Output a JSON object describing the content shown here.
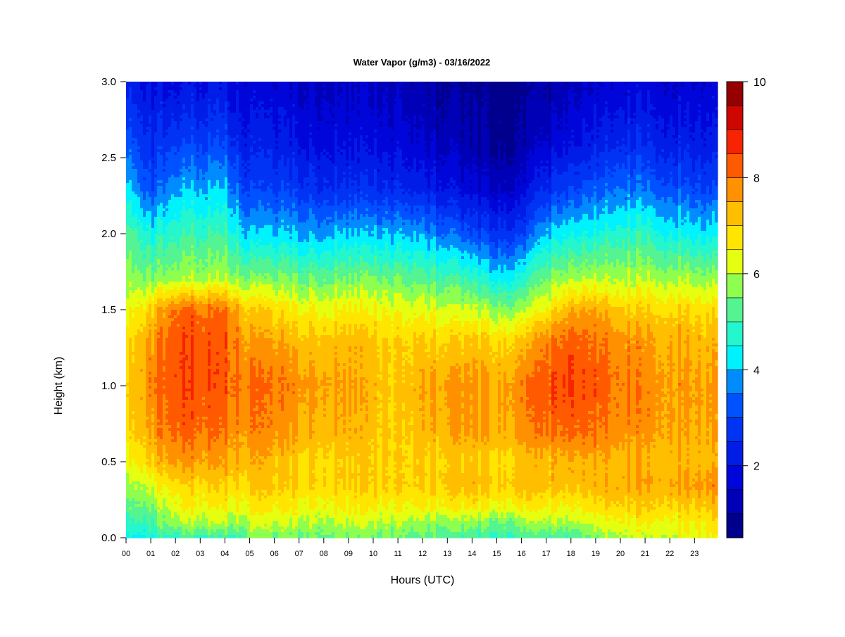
{
  "chart_data": {
    "type": "heatmap",
    "title": "Water Vapor (g/m3) - 03/16/2022",
    "xlabel": "Hours (UTC)",
    "ylabel": "Height (km)",
    "xlim": [
      0,
      23.9
    ],
    "ylim": [
      0.0,
      3.0
    ],
    "x_ticks": [
      "00",
      "01",
      "02",
      "03",
      "04",
      "05",
      "06",
      "07",
      "08",
      "09",
      "10",
      "11",
      "12",
      "13",
      "14",
      "15",
      "16",
      "17",
      "18",
      "19",
      "20",
      "21",
      "22",
      "23"
    ],
    "y_ticks": [
      "0.0",
      "0.5",
      "1.0",
      "1.5",
      "2.0",
      "2.5",
      "3.0"
    ],
    "x_hours": [
      0,
      1,
      2,
      4,
      4.5,
      5,
      7,
      9,
      11,
      12,
      13,
      14,
      15,
      16,
      17,
      18,
      19,
      20,
      21,
      22,
      23.9
    ],
    "heights_km": [
      0.0,
      0.1,
      0.2,
      0.35,
      0.5,
      0.7,
      1.0,
      1.3,
      1.5,
      1.7,
      2.0,
      2.3,
      2.6,
      3.0
    ],
    "values": [
      [
        4.5,
        5.0,
        5.5,
        6.0,
        6.5,
        7.0,
        7.2,
        7.0,
        6.5,
        6.0,
        5.5,
        4.5,
        3.5,
        2.5
      ],
      [
        4.5,
        5.0,
        5.5,
        6.2,
        7.0,
        7.5,
        7.8,
        7.6,
        7.0,
        5.5,
        4.5,
        3.0,
        2.5,
        1.8
      ],
      [
        5.0,
        6.0,
        6.5,
        7.0,
        7.8,
        8.3,
        8.6,
        8.5,
        8.2,
        6.0,
        5.0,
        4.0,
        3.0,
        2.0
      ],
      [
        5.0,
        6.0,
        6.5,
        7.0,
        7.5,
        8.0,
        8.3,
        8.3,
        8.0,
        6.0,
        5.0,
        4.0,
        3.0,
        2.0
      ],
      [
        5.0,
        6.0,
        6.5,
        7.0,
        7.5,
        7.8,
        8.2,
        8.0,
        7.6,
        5.8,
        4.5,
        3.5,
        2.5,
        1.8
      ],
      [
        5.5,
        6.0,
        6.5,
        7.0,
        7.3,
        7.8,
        8.0,
        7.5,
        7.0,
        5.5,
        4.0,
        2.8,
        2.2,
        1.6
      ],
      [
        5.5,
        6.0,
        6.5,
        7.0,
        7.0,
        7.5,
        7.8,
        7.3,
        6.5,
        5.5,
        4.0,
        2.8,
        2.0,
        1.5
      ],
      [
        5.5,
        6.0,
        6.5,
        7.0,
        7.0,
        7.3,
        7.5,
        7.2,
        6.5,
        5.5,
        4.0,
        2.5,
        1.8,
        1.4
      ],
      [
        5.5,
        6.0,
        6.5,
        7.0,
        7.0,
        7.0,
        7.0,
        7.0,
        6.4,
        5.5,
        4.0,
        2.5,
        1.8,
        1.3
      ],
      [
        5.3,
        5.8,
        6.5,
        7.0,
        7.0,
        7.3,
        7.5,
        7.0,
        6.3,
        5.3,
        3.8,
        2.3,
        1.5,
        1.1
      ],
      [
        5.2,
        5.8,
        6.5,
        7.2,
        7.0,
        7.5,
        7.6,
        7.0,
        6.2,
        5.2,
        3.5,
        2.0,
        1.3,
        0.9
      ],
      [
        5.0,
        5.6,
        6.5,
        7.2,
        7.0,
        7.5,
        7.6,
        7.0,
        6.0,
        4.8,
        3.0,
        1.6,
        1.0,
        0.8
      ],
      [
        5.0,
        5.6,
        6.5,
        7.2,
        7.0,
        7.5,
        7.6,
        7.0,
        5.8,
        4.5,
        2.8,
        1.5,
        0.9,
        0.7
      ],
      [
        5.0,
        5.6,
        6.5,
        7.2,
        7.0,
        7.6,
        7.8,
        7.0,
        5.8,
        4.5,
        2.8,
        1.5,
        0.9,
        0.7
      ],
      [
        5.0,
        6.0,
        6.5,
        7.2,
        7.2,
        8.0,
        8.3,
        7.8,
        6.5,
        5.5,
        4.0,
        2.5,
        1.5,
        1.0
      ],
      [
        5.0,
        6.0,
        6.5,
        7.3,
        7.4,
        8.2,
        8.6,
        8.3,
        7.5,
        6.0,
        4.5,
        3.0,
        2.0,
        1.3
      ],
      [
        5.5,
        6.2,
        6.8,
        7.3,
        7.4,
        8.0,
        8.3,
        8.0,
        7.5,
        6.0,
        4.5,
        3.2,
        2.2,
        1.5
      ],
      [
        6.0,
        6.5,
        7.0,
        7.5,
        7.3,
        7.8,
        8.0,
        7.8,
        7.0,
        6.0,
        4.8,
        3.5,
        2.5,
        1.6
      ],
      [
        6.0,
        6.5,
        7.0,
        7.5,
        7.3,
        7.7,
        7.8,
        7.6,
        7.0,
        6.0,
        4.8,
        3.5,
        2.5,
        1.7
      ],
      [
        6.2,
        6.5,
        7.0,
        7.6,
        7.3,
        7.6,
        7.7,
        7.5,
        7.0,
        6.0,
        4.5,
        3.2,
        2.3,
        1.6
      ],
      [
        6.5,
        6.8,
        7.2,
        7.8,
        7.3,
        7.5,
        7.6,
        7.3,
        6.8,
        5.8,
        4.3,
        3.0,
        2.2,
        1.6
      ]
    ],
    "colorbar": {
      "min": 0.5,
      "max": 10,
      "step": 0.5,
      "tick_values": [
        2,
        4,
        6,
        8,
        10
      ],
      "tick_labels": [
        "2",
        "4",
        "6",
        "8",
        "10"
      ]
    }
  }
}
